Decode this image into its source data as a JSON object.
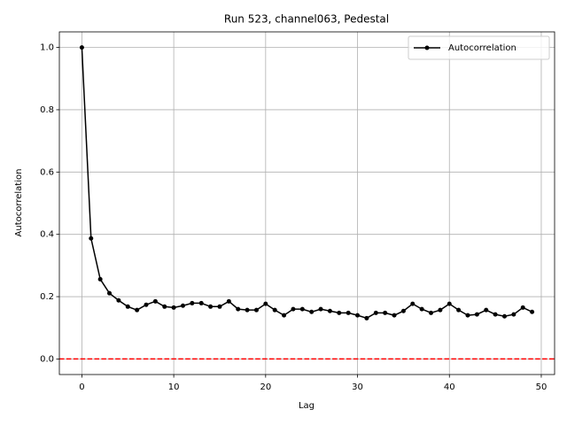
{
  "chart_data": {
    "type": "line",
    "title": "Run 523, channel063, Pedestal",
    "x_label": "Lag",
    "y_label": "Autocorrelation",
    "x": [
      0,
      1,
      2,
      3,
      4,
      5,
      6,
      7,
      8,
      9,
      10,
      11,
      12,
      13,
      14,
      15,
      16,
      17,
      18,
      19,
      20,
      21,
      22,
      23,
      24,
      25,
      26,
      27,
      28,
      29,
      30,
      31,
      32,
      33,
      34,
      35,
      36,
      37,
      38,
      39,
      40,
      41,
      42,
      43,
      44,
      45,
      46,
      47,
      48,
      49
    ],
    "series": [
      {
        "name": "Autocorrelation",
        "color": "#000000",
        "values": [
          1.0,
          0.387,
          0.256,
          0.211,
          0.188,
          0.168,
          0.157,
          0.174,
          0.185,
          0.168,
          0.165,
          0.171,
          0.179,
          0.179,
          0.168,
          0.168,
          0.185,
          0.16,
          0.157,
          0.157,
          0.177,
          0.157,
          0.14,
          0.16,
          0.16,
          0.151,
          0.16,
          0.154,
          0.148,
          0.148,
          0.14,
          0.131,
          0.148,
          0.148,
          0.14,
          0.154,
          0.177,
          0.16,
          0.148,
          0.157,
          0.177,
          0.157,
          0.14,
          0.143,
          0.157,
          0.143,
          0.137,
          0.143,
          0.165,
          0.151
        ]
      }
    ],
    "hline": {
      "value": 0,
      "color": "#ff0000"
    },
    "xlim": [
      -2.45,
      51.45
    ],
    "xticks": [
      0,
      10,
      20,
      30,
      40,
      50
    ],
    "ylim": [
      -0.05,
      1.05
    ],
    "yticks": [
      {
        "value": 0,
        "label": "0.0"
      },
      {
        "value": 0.2,
        "label": "0.2"
      },
      {
        "value": 0.4,
        "label": "0.4"
      },
      {
        "value": 0.6,
        "label": "0.6"
      },
      {
        "value": 0.8,
        "label": "0.8"
      },
      {
        "value": 1,
        "label": "1.0"
      }
    ],
    "grid": true,
    "legend": "upper right"
  }
}
